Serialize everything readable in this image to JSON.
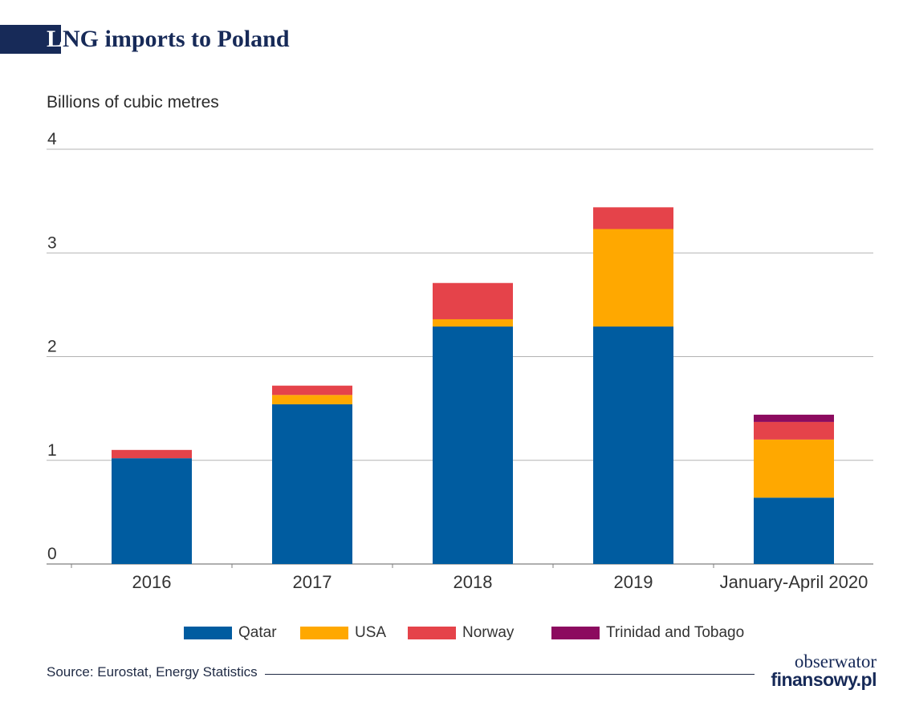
{
  "title": {
    "first_letter": "L",
    "rest": "NG imports to Poland"
  },
  "colors": {
    "title": "#172a58",
    "grid": "#b3b3b3",
    "axis": "#7f7f7f"
  },
  "chart_data": {
    "type": "bar",
    "stacked": true,
    "title": "LNG imports to Poland",
    "ylabel": "Billions of cubic metres",
    "xlabel": "",
    "ylim": [
      0,
      4
    ],
    "yticks": [
      0,
      1,
      2,
      3,
      4
    ],
    "grid": true,
    "legend_position": "bottom",
    "categories": [
      "2016",
      "2017",
      "2018",
      "2019",
      "January-April 2020"
    ],
    "series": [
      {
        "name": "Qatar",
        "color": "#005ca0",
        "values": [
          1.02,
          1.54,
          2.29,
          2.29,
          0.64
        ]
      },
      {
        "name": "USA",
        "color": "#ffa800",
        "values": [
          0,
          0.09,
          0.07,
          0.94,
          0.56
        ]
      },
      {
        "name": "Norway",
        "color": "#e5434a",
        "values": [
          0.08,
          0.09,
          0.35,
          0.21,
          0.17
        ]
      },
      {
        "name": "Trinidad and Tobago",
        "color": "#8c0b5f",
        "values": [
          0,
          0,
          0,
          0,
          0.07
        ]
      }
    ]
  },
  "footer": {
    "source": "Source: Eurostat, Energy Statistics",
    "logo_top": "obserwator",
    "logo_bottom": "finansowy.pl"
  }
}
